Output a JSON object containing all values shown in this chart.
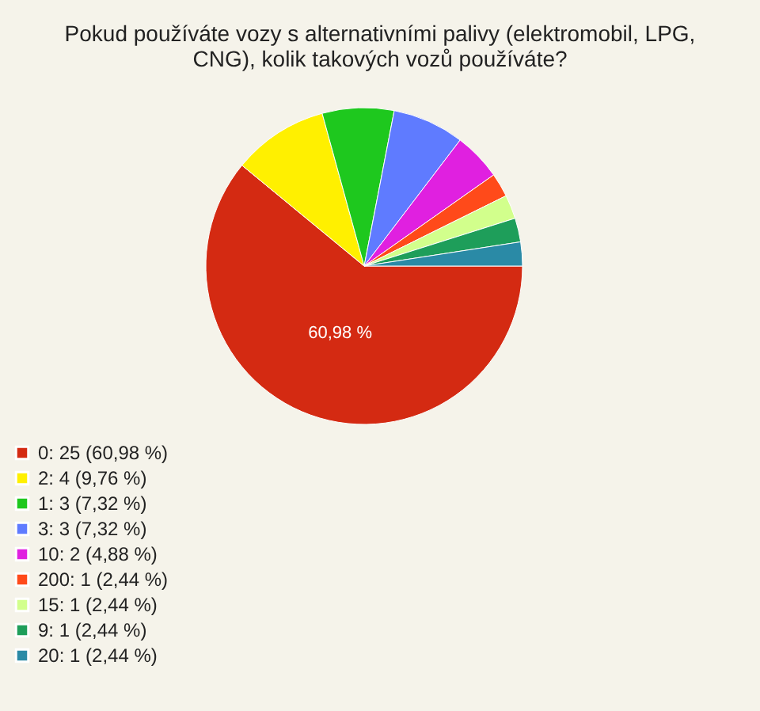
{
  "chart_data": {
    "type": "pie",
    "title": "Pokud používáte vozy s alternativními palivy (elektromobil, LPG,\nCNG), kolik takových vozů používáte?",
    "categories": [
      "0: 25 (60,98 %)",
      "2: 4 (9,76 %)",
      "1: 3 (7,32 %)",
      "3: 3 (7,32 %)",
      "10: 2 (4,88 %)",
      "200: 1 (2,44 %)",
      "15: 1 (2,44 %)",
      "9: 1 (2,44 %)",
      "20: 1 (2,44 %)"
    ],
    "values": [
      60.98,
      9.76,
      7.32,
      7.32,
      4.88,
      2.44,
      2.44,
      2.44,
      2.44
    ],
    "colors": [
      "#d42a12",
      "#fff000",
      "#1ec81e",
      "#5f7bff",
      "#e020e0",
      "#ff4a1a",
      "#d2ff8c",
      "#1e9e5a",
      "#2a8aa6"
    ],
    "value_labels": [
      "60,98 %",
      null,
      null,
      null,
      null,
      null,
      null,
      null,
      null
    ],
    "legend": "bottom left"
  }
}
